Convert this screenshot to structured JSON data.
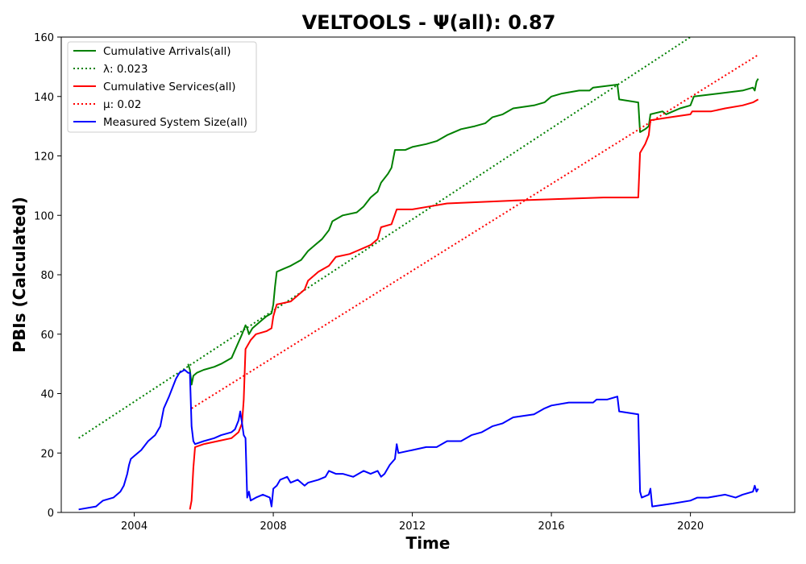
{
  "chart_data": {
    "type": "line",
    "title": "VELTOOLS -  Ψ(all): 0.87",
    "xlabel": "Time",
    "ylabel": "PBIs (Calculated)",
    "xlim": [
      2001.9,
      2023.0
    ],
    "ylim": [
      0,
      160
    ],
    "xticks": [
      2004,
      2008,
      2012,
      2016,
      2020
    ],
    "yticks": [
      0,
      20,
      40,
      60,
      80,
      100,
      120,
      140,
      160
    ],
    "grid": false,
    "legend_position": "top-left",
    "series": [
      {
        "name": "Cumulative Arrivals(all)",
        "color": "#008000",
        "style": "solid",
        "points": [
          [
            2005.55,
            50
          ],
          [
            2005.6,
            48
          ],
          [
            2005.65,
            43
          ],
          [
            2005.7,
            46
          ],
          [
            2005.8,
            47
          ],
          [
            2006.0,
            48
          ],
          [
            2006.3,
            49
          ],
          [
            2006.5,
            50
          ],
          [
            2006.8,
            52
          ],
          [
            2006.95,
            56
          ],
          [
            2007.1,
            60
          ],
          [
            2007.2,
            63
          ],
          [
            2007.25,
            62
          ],
          [
            2007.3,
            60
          ],
          [
            2007.4,
            62
          ],
          [
            2007.6,
            64
          ],
          [
            2007.8,
            66
          ],
          [
            2007.95,
            67
          ],
          [
            2008.0,
            70
          ],
          [
            2008.05,
            76
          ],
          [
            2008.1,
            81
          ],
          [
            2008.3,
            82
          ],
          [
            2008.5,
            83
          ],
          [
            2008.8,
            85
          ],
          [
            2009.0,
            88
          ],
          [
            2009.2,
            90
          ],
          [
            2009.4,
            92
          ],
          [
            2009.6,
            95
          ],
          [
            2009.7,
            98
          ],
          [
            2010.0,
            100
          ],
          [
            2010.4,
            101
          ],
          [
            2010.6,
            103
          ],
          [
            2010.8,
            106
          ],
          [
            2011.0,
            108
          ],
          [
            2011.1,
            111
          ],
          [
            2011.3,
            114
          ],
          [
            2011.4,
            116
          ],
          [
            2011.5,
            122
          ],
          [
            2011.8,
            122
          ],
          [
            2012.0,
            123
          ],
          [
            2012.4,
            124
          ],
          [
            2012.7,
            125
          ],
          [
            2013.0,
            127
          ],
          [
            2013.4,
            129
          ],
          [
            2013.8,
            130
          ],
          [
            2014.1,
            131
          ],
          [
            2014.3,
            133
          ],
          [
            2014.6,
            134
          ],
          [
            2014.9,
            136
          ],
          [
            2015.5,
            137
          ],
          [
            2015.8,
            138
          ],
          [
            2016.0,
            140
          ],
          [
            2016.3,
            141
          ],
          [
            2016.8,
            142
          ],
          [
            2017.1,
            142
          ],
          [
            2017.2,
            143
          ],
          [
            2017.9,
            144
          ],
          [
            2017.95,
            139
          ],
          [
            2018.5,
            138
          ],
          [
            2018.55,
            128
          ],
          [
            2018.7,
            129
          ],
          [
            2018.8,
            130
          ],
          [
            2018.85,
            134
          ],
          [
            2019.2,
            135
          ],
          [
            2019.3,
            134
          ],
          [
            2019.5,
            135
          ],
          [
            2019.7,
            136
          ],
          [
            2020.0,
            137
          ],
          [
            2020.1,
            140
          ],
          [
            2020.8,
            141
          ],
          [
            2021.5,
            142
          ],
          [
            2021.8,
            143
          ],
          [
            2021.85,
            142
          ],
          [
            2021.9,
            145
          ],
          [
            2021.95,
            146
          ]
        ]
      },
      {
        "name": "λ: 0.023",
        "color": "#008000",
        "style": "dotted",
        "points": [
          [
            2002.4,
            25
          ],
          [
            2020.0,
            160
          ]
        ]
      },
      {
        "name": "Cumulative Services(all)",
        "color": "#ff0000",
        "style": "solid",
        "points": [
          [
            2005.6,
            1
          ],
          [
            2005.65,
            4
          ],
          [
            2005.7,
            15
          ],
          [
            2005.75,
            22
          ],
          [
            2006.0,
            23
          ],
          [
            2006.4,
            24
          ],
          [
            2006.8,
            25
          ],
          [
            2007.0,
            27
          ],
          [
            2007.1,
            30
          ],
          [
            2007.15,
            38
          ],
          [
            2007.2,
            55
          ],
          [
            2007.35,
            58
          ],
          [
            2007.5,
            60
          ],
          [
            2007.8,
            61
          ],
          [
            2007.95,
            62
          ],
          [
            2008.0,
            66
          ],
          [
            2008.05,
            68
          ],
          [
            2008.1,
            70
          ],
          [
            2008.5,
            71
          ],
          [
            2008.7,
            73
          ],
          [
            2008.9,
            75
          ],
          [
            2009.0,
            78
          ],
          [
            2009.3,
            81
          ],
          [
            2009.6,
            83
          ],
          [
            2009.8,
            86
          ],
          [
            2010.2,
            87
          ],
          [
            2010.4,
            88
          ],
          [
            2010.8,
            90
          ],
          [
            2011.0,
            92
          ],
          [
            2011.1,
            96
          ],
          [
            2011.4,
            97
          ],
          [
            2011.55,
            102
          ],
          [
            2012.0,
            102
          ],
          [
            2012.5,
            103
          ],
          [
            2013.0,
            104
          ],
          [
            2015.0,
            105
          ],
          [
            2017.5,
            106
          ],
          [
            2018.5,
            106
          ],
          [
            2018.55,
            121
          ],
          [
            2018.7,
            124
          ],
          [
            2018.8,
            127
          ],
          [
            2018.85,
            132
          ],
          [
            2019.4,
            133
          ],
          [
            2020.0,
            134
          ],
          [
            2020.05,
            135
          ],
          [
            2020.6,
            135
          ],
          [
            2021.0,
            136
          ],
          [
            2021.5,
            137
          ],
          [
            2021.8,
            138
          ],
          [
            2021.95,
            139
          ]
        ]
      },
      {
        "name": "μ: 0.02",
        "color": "#ff0000",
        "style": "dotted",
        "points": [
          [
            2005.65,
            35
          ],
          [
            2021.95,
            154
          ]
        ]
      },
      {
        "name": "Measured System Size(all)",
        "color": "#0000ff",
        "style": "solid",
        "points": [
          [
            2002.4,
            1
          ],
          [
            2002.9,
            2
          ],
          [
            2003.0,
            3
          ],
          [
            2003.1,
            4
          ],
          [
            2003.4,
            5
          ],
          [
            2003.6,
            7
          ],
          [
            2003.7,
            9
          ],
          [
            2003.8,
            13
          ],
          [
            2003.85,
            16
          ],
          [
            2003.9,
            18
          ],
          [
            2004.0,
            19
          ],
          [
            2004.2,
            21
          ],
          [
            2004.4,
            24
          ],
          [
            2004.6,
            26
          ],
          [
            2004.75,
            29
          ],
          [
            2004.85,
            35
          ],
          [
            2005.0,
            39
          ],
          [
            2005.1,
            42
          ],
          [
            2005.2,
            45
          ],
          [
            2005.3,
            47
          ],
          [
            2005.45,
            48
          ],
          [
            2005.55,
            47
          ],
          [
            2005.6,
            47
          ],
          [
            2005.65,
            29
          ],
          [
            2005.7,
            24
          ],
          [
            2005.75,
            23
          ],
          [
            2006.0,
            24
          ],
          [
            2006.3,
            25
          ],
          [
            2006.5,
            26
          ],
          [
            2006.8,
            27
          ],
          [
            2006.9,
            28
          ],
          [
            2007.0,
            31
          ],
          [
            2007.05,
            34
          ],
          [
            2007.1,
            30
          ],
          [
            2007.15,
            26
          ],
          [
            2007.2,
            25
          ],
          [
            2007.25,
            5
          ],
          [
            2007.3,
            7
          ],
          [
            2007.35,
            4
          ],
          [
            2007.5,
            5
          ],
          [
            2007.7,
            6
          ],
          [
            2007.9,
            5
          ],
          [
            2007.95,
            2
          ],
          [
            2008.0,
            8
          ],
          [
            2008.1,
            9
          ],
          [
            2008.2,
            11
          ],
          [
            2008.4,
            12
          ],
          [
            2008.5,
            10
          ],
          [
            2008.7,
            11
          ],
          [
            2008.9,
            9
          ],
          [
            2009.0,
            10
          ],
          [
            2009.3,
            11
          ],
          [
            2009.5,
            12
          ],
          [
            2009.6,
            14
          ],
          [
            2009.8,
            13
          ],
          [
            2010.0,
            13
          ],
          [
            2010.3,
            12
          ],
          [
            2010.6,
            14
          ],
          [
            2010.8,
            13
          ],
          [
            2011.0,
            14
          ],
          [
            2011.1,
            12
          ],
          [
            2011.2,
            13
          ],
          [
            2011.35,
            16
          ],
          [
            2011.5,
            18
          ],
          [
            2011.55,
            23
          ],
          [
            2011.6,
            20
          ],
          [
            2012.0,
            21
          ],
          [
            2012.4,
            22
          ],
          [
            2012.7,
            22
          ],
          [
            2013.0,
            24
          ],
          [
            2013.4,
            24
          ],
          [
            2013.7,
            26
          ],
          [
            2014.0,
            27
          ],
          [
            2014.3,
            29
          ],
          [
            2014.6,
            30
          ],
          [
            2014.9,
            32
          ],
          [
            2015.5,
            33
          ],
          [
            2015.8,
            35
          ],
          [
            2016.0,
            36
          ],
          [
            2016.5,
            37
          ],
          [
            2017.2,
            37
          ],
          [
            2017.3,
            38
          ],
          [
            2017.6,
            38
          ],
          [
            2017.9,
            39
          ],
          [
            2017.95,
            34
          ],
          [
            2018.5,
            33
          ],
          [
            2018.55,
            7
          ],
          [
            2018.6,
            5
          ],
          [
            2018.8,
            6
          ],
          [
            2018.85,
            8
          ],
          [
            2018.9,
            2
          ],
          [
            2019.5,
            3
          ],
          [
            2020.0,
            4
          ],
          [
            2020.2,
            5
          ],
          [
            2020.5,
            5
          ],
          [
            2021.0,
            6
          ],
          [
            2021.3,
            5
          ],
          [
            2021.5,
            6
          ],
          [
            2021.8,
            7
          ],
          [
            2021.85,
            9
          ],
          [
            2021.9,
            7
          ],
          [
            2021.95,
            8
          ]
        ]
      }
    ]
  }
}
